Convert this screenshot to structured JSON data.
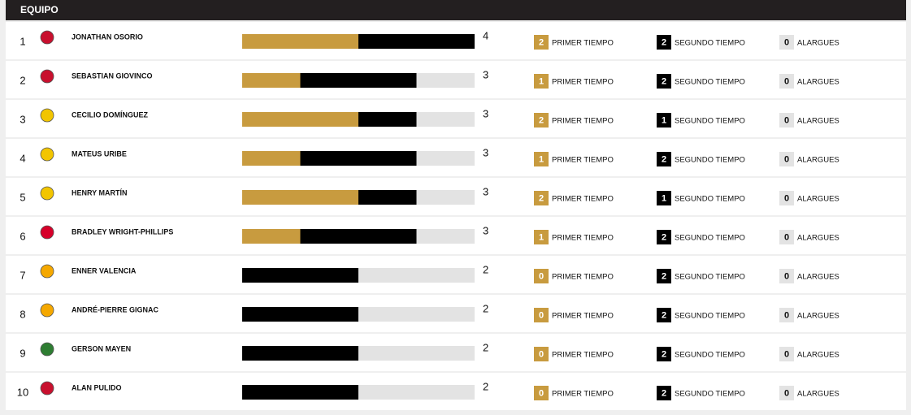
{
  "header": {
    "title": "EQUIPO"
  },
  "labels": {
    "primer": "PRIMER TIEMPO",
    "segundo": "SEGUNDO TIEMPO",
    "alargues": "ALARGUES"
  },
  "rows": [
    {
      "rank": 1,
      "name": "JONATHAN OSORIO",
      "total": 4,
      "primer": 2,
      "segundo": 2,
      "alargues": 0
    },
    {
      "rank": 2,
      "name": "SEBASTIAN GIOVINCO",
      "total": 3,
      "primer": 1,
      "segundo": 2,
      "alargues": 0
    },
    {
      "rank": 3,
      "name": "CECILIO DOMÍNGUEZ",
      "total": 3,
      "primer": 2,
      "segundo": 1,
      "alargues": 0
    },
    {
      "rank": 4,
      "name": "MATEUS URIBE",
      "total": 3,
      "primer": 1,
      "segundo": 2,
      "alargues": 0
    },
    {
      "rank": 5,
      "name": "HENRY MARTÍN",
      "total": 3,
      "primer": 2,
      "segundo": 1,
      "alargues": 0
    },
    {
      "rank": 6,
      "name": "BRADLEY WRIGHT-PHILLIPS",
      "total": 3,
      "primer": 1,
      "segundo": 2,
      "alargues": 0
    },
    {
      "rank": 7,
      "name": "ENNER VALENCIA",
      "total": 2,
      "primer": 0,
      "segundo": 2,
      "alargues": 0
    },
    {
      "rank": 8,
      "name": "ANDRÉ-PIERRE GIGNAC",
      "total": 2,
      "primer": 0,
      "segundo": 2,
      "alargues": 0
    },
    {
      "rank": 9,
      "name": "GERSON MAYEN",
      "total": 2,
      "primer": 0,
      "segundo": 2,
      "alargues": 0
    },
    {
      "rank": 10,
      "name": "ALAN PULIDO",
      "total": 2,
      "primer": 0,
      "segundo": 2,
      "alargues": 0
    }
  ]
}
